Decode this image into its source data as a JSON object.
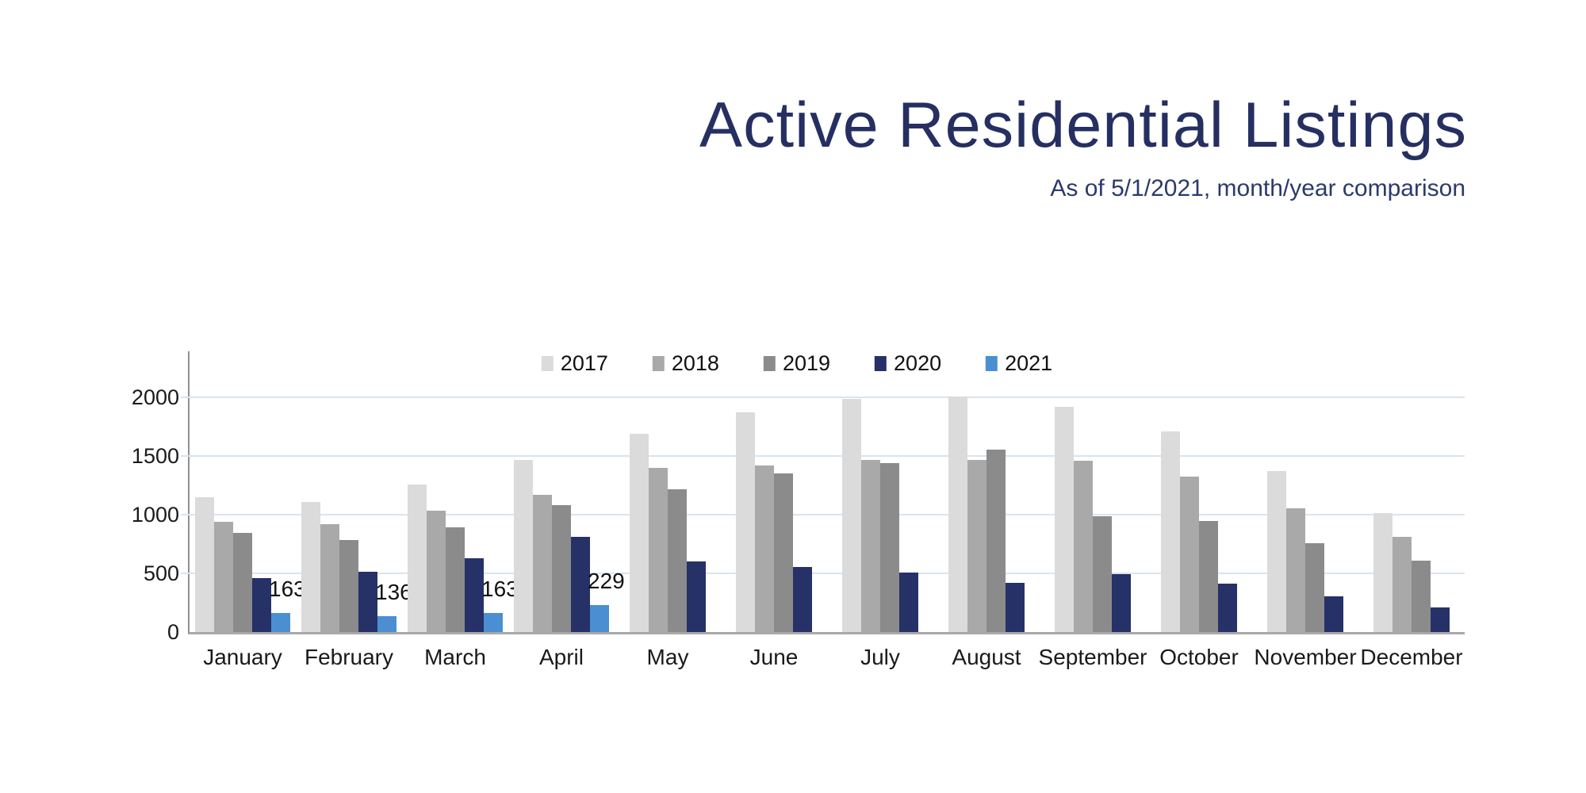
{
  "chart_data": {
    "type": "bar",
    "title": "Active Residential Listings",
    "subtitle": "As of 5/1/2021, month/year comparison",
    "categories": [
      "January",
      "February",
      "March",
      "April",
      "May",
      "June",
      "July",
      "August",
      "September",
      "October",
      "November",
      "December"
    ],
    "series": [
      {
        "name": "2017",
        "color": "#dbdbdb",
        "values": [
          1150,
          1105,
          1260,
          1465,
          1690,
          1870,
          1985,
          2010,
          1920,
          1710,
          1375,
          1015
        ]
      },
      {
        "name": "2018",
        "color": "#a9a9a9",
        "values": [
          940,
          920,
          1035,
          1170,
          1400,
          1420,
          1465,
          1465,
          1460,
          1325,
          1055,
          810
        ]
      },
      {
        "name": "2019",
        "color": "#8b8b8b",
        "values": [
          845,
          785,
          890,
          1080,
          1215,
          1350,
          1440,
          1555,
          985,
          945,
          755,
          605
        ]
      },
      {
        "name": "2020",
        "color": "#263168",
        "values": [
          460,
          515,
          630,
          810,
          600,
          555,
          510,
          420,
          490,
          415,
          305,
          210
        ]
      },
      {
        "name": "2021",
        "color": "#4b8fd2",
        "values": [
          163,
          136,
          163,
          229,
          null,
          null,
          null,
          null,
          null,
          null,
          null,
          null
        ],
        "show_labels": true
      }
    ],
    "data_labels": {
      "2021": [
        "163",
        "136",
        "163",
        "229"
      ]
    },
    "y_ticks": [
      0,
      500,
      1000,
      1500,
      2000
    ],
    "ylim": [
      0,
      2400
    ],
    "xlabel": "",
    "ylabel": "",
    "grid": "horizontal",
    "legend_position": "top-center",
    "colors": {
      "title": "#252f62",
      "gridline": "#d9e4ee",
      "axis": "#8f8f8f",
      "label_text": "#111111",
      "background": "#ffffff"
    }
  }
}
